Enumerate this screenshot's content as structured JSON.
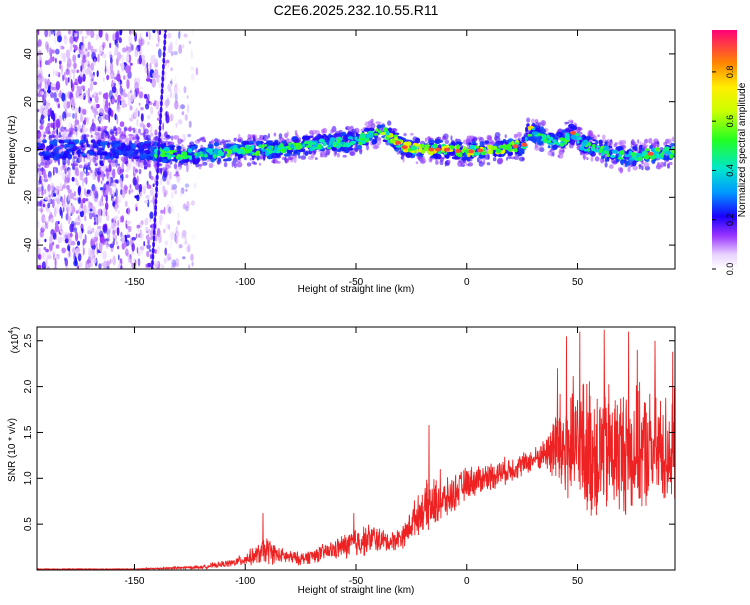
{
  "title": "C2E6.2025.232.10.55.R11",
  "chart_data": [
    {
      "type": "heatmap",
      "name": "spectrogram",
      "xlabel": "Height of straight line (km)",
      "ylabel": "Frequency (Hz)",
      "xlim": [
        -194,
        94
      ],
      "ylim": [
        -50,
        50
      ],
      "xticks": [
        -150,
        -100,
        -50,
        0,
        50
      ],
      "yticks": [
        -40,
        -20,
        0,
        20,
        40
      ],
      "colorbar": {
        "label": "Normalized spectral amplitude",
        "range": [
          0,
          0.97
        ],
        "ticks": [
          0.0,
          0.2,
          0.4,
          0.6,
          0.8
        ]
      },
      "ridge": {
        "x": [
          -194,
          -150,
          -130,
          -110,
          -90,
          -70,
          -55,
          -45,
          -38,
          -33,
          -28,
          -20,
          -10,
          0,
          10,
          20,
          26,
          28,
          35,
          42,
          48,
          52,
          60,
          70,
          80,
          94
        ],
        "y": [
          0,
          0,
          -2,
          -1,
          0,
          2,
          3,
          5,
          8,
          4,
          1,
          0,
          0,
          -1,
          0,
          1,
          2,
          8,
          5,
          3,
          7,
          2,
          0,
          -3,
          -2,
          -1
        ]
      }
    },
    {
      "type": "line",
      "name": "snr",
      "xlabel": "Height of straight line (km)",
      "ylabel": "SNR (10 * v/v)",
      "multiplier": "(x10",
      "multiplier_exp": "4",
      "multiplier_close": ")",
      "xlim": [
        -194,
        94
      ],
      "ylim": [
        0,
        2.65
      ],
      "xticks": [
        -150,
        -100,
        -50,
        0,
        50
      ],
      "yticks": [
        0.5,
        1.0,
        1.5,
        2.0,
        2.5
      ],
      "ytick_labels": [
        "0.5",
        "1.0",
        "1.5",
        "2.0",
        "2.5"
      ],
      "series_color": "#ee2222",
      "envelope": {
        "x": [
          -194,
          -150,
          -120,
          -105,
          -95,
          -90,
          -85,
          -75,
          -60,
          -50,
          -42,
          -35,
          -28,
          -24,
          -20,
          -17,
          -10,
          0,
          10,
          20,
          30,
          36,
          40,
          50,
          60,
          70,
          80,
          94
        ],
        "base": [
          0.01,
          0.01,
          0.03,
          0.08,
          0.16,
          0.22,
          0.16,
          0.12,
          0.22,
          0.3,
          0.35,
          0.3,
          0.38,
          0.55,
          0.65,
          0.7,
          0.75,
          0.95,
          1.02,
          1.1,
          1.2,
          1.28,
          1.35,
          1.3,
          1.3,
          1.3,
          1.3,
          1.3
        ],
        "amp": [
          0.005,
          0.005,
          0.02,
          0.05,
          0.12,
          0.18,
          0.1,
          0.08,
          0.12,
          0.2,
          0.18,
          0.12,
          0.15,
          0.22,
          0.25,
          0.35,
          0.25,
          0.2,
          0.18,
          0.16,
          0.14,
          0.2,
          0.6,
          0.9,
          0.9,
          0.8,
          0.75,
          0.7
        ]
      },
      "spikes": [
        [
          -92,
          0.62
        ],
        [
          -51,
          0.62
        ],
        [
          -17,
          1.58
        ],
        [
          -12,
          1.1
        ],
        [
          38,
          1.5
        ],
        [
          41,
          2.2
        ],
        [
          45,
          2.55
        ],
        [
          51,
          2.6
        ],
        [
          62,
          2.62
        ],
        [
          73,
          2.6
        ],
        [
          77,
          2.4
        ],
        [
          85,
          2.5
        ],
        [
          93,
          2.38
        ]
      ]
    }
  ]
}
